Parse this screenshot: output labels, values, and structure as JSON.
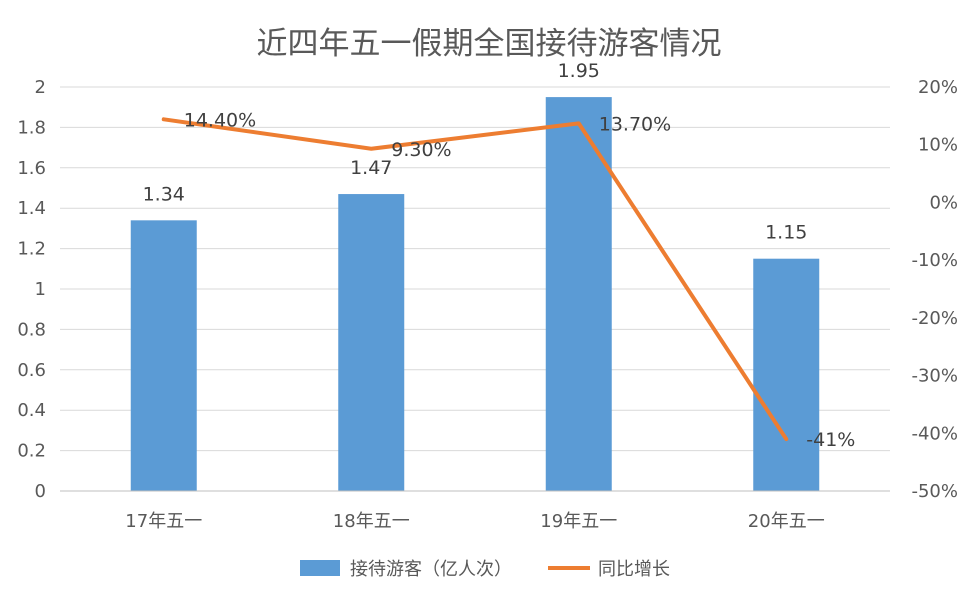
{
  "title": "近四年五一假期全国接待游客情况",
  "chart_data": {
    "type": "bar",
    "title": "近四年五一假期全国接待游客情况",
    "categories": [
      "17年五一",
      "18年五一",
      "19年五一",
      "20年五一"
    ],
    "series": [
      {
        "name": "接待游客（亿人次）",
        "type": "bar",
        "axis": "left",
        "values": [
          1.34,
          1.47,
          1.95,
          1.15
        ],
        "labels": [
          "1.34",
          "1.47",
          "1.95",
          "1.15"
        ],
        "color": "#5B9BD5"
      },
      {
        "name": "同比增长",
        "type": "line",
        "axis": "right",
        "values": [
          14.4,
          9.3,
          13.7,
          -41
        ],
        "labels": [
          "14.40%",
          "9.30%",
          "13.70%",
          "-41%"
        ],
        "color": "#ED7D31"
      }
    ],
    "y_left": {
      "min": 0,
      "max": 2,
      "ticks": [
        "0",
        "0.2",
        "0.4",
        "0.6",
        "0.8",
        "1",
        "1.2",
        "1.4",
        "1.6",
        "1.8",
        "2"
      ]
    },
    "y_right": {
      "min": -50,
      "max": 20,
      "ticks": [
        "-50%",
        "-40%",
        "-30%",
        "-20%",
        "-10%",
        "0%",
        "10%",
        "20%"
      ]
    },
    "grid": true,
    "legend_position": "bottom"
  }
}
